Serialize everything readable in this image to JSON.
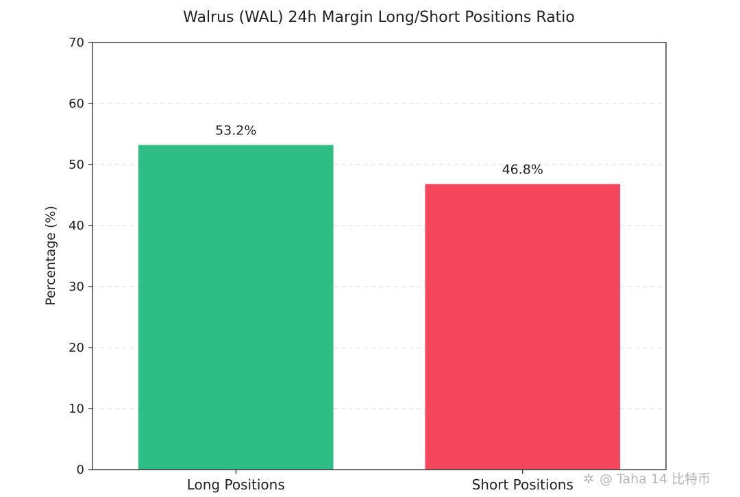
{
  "chart_data": {
    "type": "bar",
    "title": "Walrus (WAL) 24h Margin Long/Short Positions Ratio",
    "ylabel": "Percentage (%)",
    "xlabel": "",
    "ylim": [
      0,
      70
    ],
    "yticks": [
      0,
      10,
      20,
      30,
      40,
      50,
      60,
      70
    ],
    "grid": "horizontal-dashed",
    "categories": [
      "Long Positions",
      "Short Positions"
    ],
    "values": [
      53.2,
      46.8
    ],
    "data_labels": [
      "53.2%",
      "46.8%"
    ],
    "colors": [
      "#2ebd85",
      "#f6465d"
    ]
  },
  "watermark": {
    "text": "@ Taha 14 比特币",
    "icon": "sparkle-icon"
  }
}
